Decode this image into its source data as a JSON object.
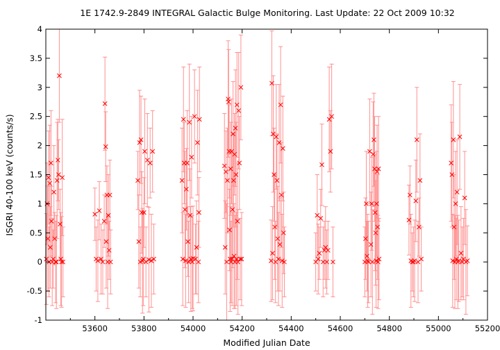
{
  "chart_data": {
    "type": "scatter",
    "title": "1E 1742.9-2849    INTEGRAL Galactic Bulge Monitoring.  Last Update: 22 Oct 2009 10:32",
    "xlabel": "Modified Julian Date",
    "ylabel": "ISGRI 40-100 keV (counts/s)",
    "xlim": [
      53400,
      55200
    ],
    "ylim": [
      -1,
      4
    ],
    "xticks": [
      53600,
      53800,
      54000,
      54200,
      54400,
      54600,
      54800,
      55000,
      55200
    ],
    "yticks": [
      -1,
      -0.5,
      0,
      0.5,
      1,
      1.5,
      2,
      2.5,
      3,
      3.5,
      4
    ],
    "grid": false,
    "legend": "none",
    "marker": "x",
    "color": "#ff0000",
    "errorbar_color": "#ff9090",
    "series": [
      {
        "points": [
          [
            53402,
            0.05,
            0.78
          ],
          [
            53405,
            1.0,
            0.7
          ],
          [
            53408,
            0.4,
            0.9
          ],
          [
            53411,
            1.45,
            0.8
          ],
          [
            53413,
            0.0,
            0.6
          ],
          [
            53416,
            1.35,
            1.0
          ],
          [
            53418,
            0.25,
            0.7
          ],
          [
            53421,
            1.7,
            0.9
          ],
          [
            53423,
            0.7,
            0.6
          ],
          [
            53426,
            0.0,
            0.75
          ],
          [
            53430,
            0.05,
            0.5
          ],
          [
            53433,
            1.2,
            0.8
          ],
          [
            53436,
            0.4,
            0.45
          ],
          [
            53440,
            0.0,
            0.7
          ],
          [
            53443,
            0.0,
            0.8
          ],
          [
            53446,
            1.4,
            1.0
          ],
          [
            53449,
            1.75,
            0.7
          ],
          [
            53452,
            1.5,
            0.6
          ],
          [
            53455,
            3.2,
            0.8
          ],
          [
            53458,
            0.65,
            0.6
          ],
          [
            53461,
            0.05,
            0.8
          ],
          [
            53464,
            0.0,
            0.78
          ],
          [
            53467,
            1.45,
            1.0
          ],
          [
            53470,
            0.0,
            0.6
          ],
          [
            53600,
            0.82,
            0.45
          ],
          [
            53605,
            0.05,
            0.55
          ],
          [
            53612,
            0.02,
            0.7
          ],
          [
            53618,
            0.88,
            0.5
          ],
          [
            53625,
            0.05,
            0.6
          ],
          [
            53632,
            0.0,
            0.55
          ],
          [
            53638,
            0.7,
            0.45
          ],
          [
            53641,
            2.72,
            0.8
          ],
          [
            53644,
            1.98,
            0.6
          ],
          [
            53646,
            0.35,
            0.8
          ],
          [
            53649,
            1.15,
            0.5
          ],
          [
            53652,
            0.0,
            0.8
          ],
          [
            53655,
            0.8,
            0.7
          ],
          [
            53658,
            0.2,
            0.5
          ],
          [
            53661,
            1.15,
            0.6
          ],
          [
            53664,
            0.0,
            0.55
          ],
          [
            53775,
            1.4,
            0.5
          ],
          [
            53779,
            0.35,
            0.8
          ],
          [
            53782,
            2.05,
            0.9
          ],
          [
            53785,
            0.0,
            0.6
          ],
          [
            53788,
            2.1,
            0.75
          ],
          [
            53791,
            0.85,
            0.7
          ],
          [
            53794,
            0.02,
            0.9
          ],
          [
            53797,
            0.05,
            0.8
          ],
          [
            53800,
            0.85,
            0.6
          ],
          [
            53803,
            1.9,
            0.9
          ],
          [
            53808,
            0.0,
            0.6
          ],
          [
            53814,
            1.75,
            0.8
          ],
          [
            53820,
            0.04,
            0.9
          ],
          [
            53825,
            1.7,
            0.6
          ],
          [
            53830,
            0.02,
            0.8
          ],
          [
            53835,
            1.9,
            0.7
          ],
          [
            53840,
            0.05,
            0.6
          ],
          [
            53955,
            1.4,
            0.9
          ],
          [
            53958,
            0.05,
            0.8
          ],
          [
            53961,
            2.45,
            0.9
          ],
          [
            53964,
            1.7,
            0.7
          ],
          [
            53967,
            0.9,
            1.0
          ],
          [
            53970,
            0.02,
            0.8
          ],
          [
            53973,
            1.25,
            0.7
          ],
          [
            53976,
            1.7,
            0.9
          ],
          [
            53979,
            0.35,
            0.6
          ],
          [
            53982,
            0.0,
            0.7
          ],
          [
            53985,
            2.4,
            1.0
          ],
          [
            53988,
            0.8,
            0.8
          ],
          [
            53991,
            0.05,
            0.9
          ],
          [
            53994,
            1.8,
            0.7
          ],
          [
            53997,
            0.0,
            0.8
          ],
          [
            54000,
            0.06,
            0.9
          ],
          [
            54006,
            2.5,
            0.8
          ],
          [
            54010,
            0.05,
            0.6
          ],
          [
            54014,
            0.25,
            0.8
          ],
          [
            54018,
            2.05,
            0.9
          ],
          [
            54022,
            0.0,
            0.7
          ],
          [
            54024,
            0.85,
            0.6
          ],
          [
            54026,
            2.45,
            0.9
          ],
          [
            54128,
            1.65,
            0.9
          ],
          [
            54131,
            0.25,
            0.8
          ],
          [
            54134,
            1.55,
            0.7
          ],
          [
            54137,
            0.0,
            1.0
          ],
          [
            54140,
            1.4,
            0.9
          ],
          [
            54143,
            2.8,
            1.0
          ],
          [
            54145,
            2.75,
            0.9
          ],
          [
            54147,
            1.9,
            0.8
          ],
          [
            54149,
            0.55,
            0.7
          ],
          [
            54151,
            0.05,
            0.9
          ],
          [
            54153,
            1.6,
            0.8
          ],
          [
            54155,
            0.0,
            0.7
          ],
          [
            54157,
            1.9,
            0.9
          ],
          [
            54159,
            0.05,
            0.8
          ],
          [
            54161,
            0.9,
            1.0
          ],
          [
            54163,
            2.2,
            0.9
          ],
          [
            54165,
            1.4,
            0.8
          ],
          [
            54167,
            0.1,
            0.9
          ],
          [
            54169,
            1.85,
            0.7
          ],
          [
            54171,
            0.0,
            0.8
          ],
          [
            54173,
            2.3,
            1.0
          ],
          [
            54175,
            1.5,
            0.9
          ],
          [
            54177,
            0.05,
            0.8
          ],
          [
            54179,
            2.7,
            0.9
          ],
          [
            54181,
            0.7,
            1.0
          ],
          [
            54183,
            0.0,
            0.9
          ],
          [
            54186,
            2.6,
            1.0
          ],
          [
            54189,
            1.7,
            0.8
          ],
          [
            54192,
            0.05,
            0.7
          ],
          [
            54195,
            3.0,
            0.9
          ],
          [
            54198,
            0.05,
            0.8
          ],
          [
            54318,
            0.02,
            0.7
          ],
          [
            54321,
            3.07,
            0.9
          ],
          [
            54324,
            0.15,
            0.8
          ],
          [
            54327,
            2.2,
            1.0
          ],
          [
            54330,
            1.5,
            0.8
          ],
          [
            54333,
            0.6,
            0.9
          ],
          [
            54336,
            0.0,
            0.7
          ],
          [
            54339,
            2.15,
            0.9
          ],
          [
            54342,
            1.4,
            0.8
          ],
          [
            54345,
            0.4,
            0.9
          ],
          [
            54348,
            0.05,
            0.8
          ],
          [
            54351,
            2.05,
            1.0
          ],
          [
            54354,
            0.3,
            0.8
          ],
          [
            54357,
            2.7,
            1.0
          ],
          [
            54360,
            1.15,
            0.9
          ],
          [
            54363,
            0.02,
            0.8
          ],
          [
            54366,
            1.95,
            0.9
          ],
          [
            54369,
            0.5,
            0.7
          ],
          [
            54372,
            0.0,
            0.6
          ],
          [
            54500,
            0.0,
            0.5
          ],
          [
            54506,
            0.8,
            0.7
          ],
          [
            54510,
            0.05,
            0.6
          ],
          [
            54515,
            0.15,
            0.45
          ],
          [
            54520,
            0.75,
            0.5
          ],
          [
            54525,
            1.67,
            0.7
          ],
          [
            54530,
            0.0,
            0.6
          ],
          [
            54535,
            0.2,
            0.5
          ],
          [
            54540,
            0.25,
            0.7
          ],
          [
            54545,
            0.0,
            0.55
          ],
          [
            54550,
            0.2,
            0.5
          ],
          [
            54555,
            2.45,
            0.9
          ],
          [
            54560,
            1.9,
            0.7
          ],
          [
            54565,
            2.5,
            0.9
          ],
          [
            54570,
            0.0,
            0.6
          ],
          [
            54700,
            0.0,
            0.6
          ],
          [
            54703,
            0.4,
            0.7
          ],
          [
            54706,
            1.0,
            0.9
          ],
          [
            54709,
            0.1,
            0.6
          ],
          [
            54712,
            0.02,
            0.8
          ],
          [
            54715,
            0.0,
            0.7
          ],
          [
            54720,
            1.9,
            0.9
          ],
          [
            54725,
            0.3,
            0.9
          ],
          [
            54728,
            1.0,
            0.8
          ],
          [
            54731,
            0.0,
            0.9
          ],
          [
            54734,
            1.85,
            0.9
          ],
          [
            54737,
            2.1,
            0.8
          ],
          [
            54740,
            1.6,
            0.9
          ],
          [
            54742,
            0.85,
            1.0
          ],
          [
            54744,
            0.5,
            0.9
          ],
          [
            54746,
            0.02,
            0.8
          ],
          [
            54748,
            1.0,
            0.9
          ],
          [
            54750,
            1.55,
            0.8
          ],
          [
            54752,
            0.6,
            0.9
          ],
          [
            54754,
            0.0,
            0.8
          ],
          [
            54756,
            1.6,
            0.9
          ],
          [
            54758,
            0.05,
            0.7
          ],
          [
            54880,
            0.72,
            0.6
          ],
          [
            54884,
            1.15,
            0.5
          ],
          [
            54888,
            0.02,
            0.8
          ],
          [
            54893,
            0.0,
            0.5
          ],
          [
            54898,
            0.0,
            0.6
          ],
          [
            54903,
            0.02,
            0.7
          ],
          [
            54908,
            1.05,
            0.7
          ],
          [
            54912,
            2.1,
            0.9
          ],
          [
            54917,
            0.0,
            0.7
          ],
          [
            54921,
            0.6,
            0.5
          ],
          [
            54925,
            1.4,
            0.8
          ],
          [
            54930,
            0.05,
            0.55
          ],
          [
            55052,
            1.7,
            1.0
          ],
          [
            55055,
            1.5,
            0.9
          ],
          [
            55058,
            0.02,
            0.8
          ],
          [
            55061,
            2.1,
            1.0
          ],
          [
            55064,
            0.6,
            0.9
          ],
          [
            55067,
            0.0,
            0.8
          ],
          [
            55070,
            1.0,
            0.9
          ],
          [
            55073,
            0.05,
            0.7
          ],
          [
            55076,
            1.2,
            0.9
          ],
          [
            55079,
            0.0,
            0.8
          ],
          [
            55083,
            0.02,
            0.7
          ],
          [
            55087,
            2.15,
            0.9
          ],
          [
            55092,
            0.15,
            0.8
          ],
          [
            55097,
            0.0,
            0.6
          ],
          [
            55102,
            0.05,
            0.7
          ],
          [
            55107,
            1.1,
            0.8
          ],
          [
            55112,
            0.0,
            0.9
          ],
          [
            55118,
            0.02,
            0.6
          ]
        ]
      }
    ]
  }
}
